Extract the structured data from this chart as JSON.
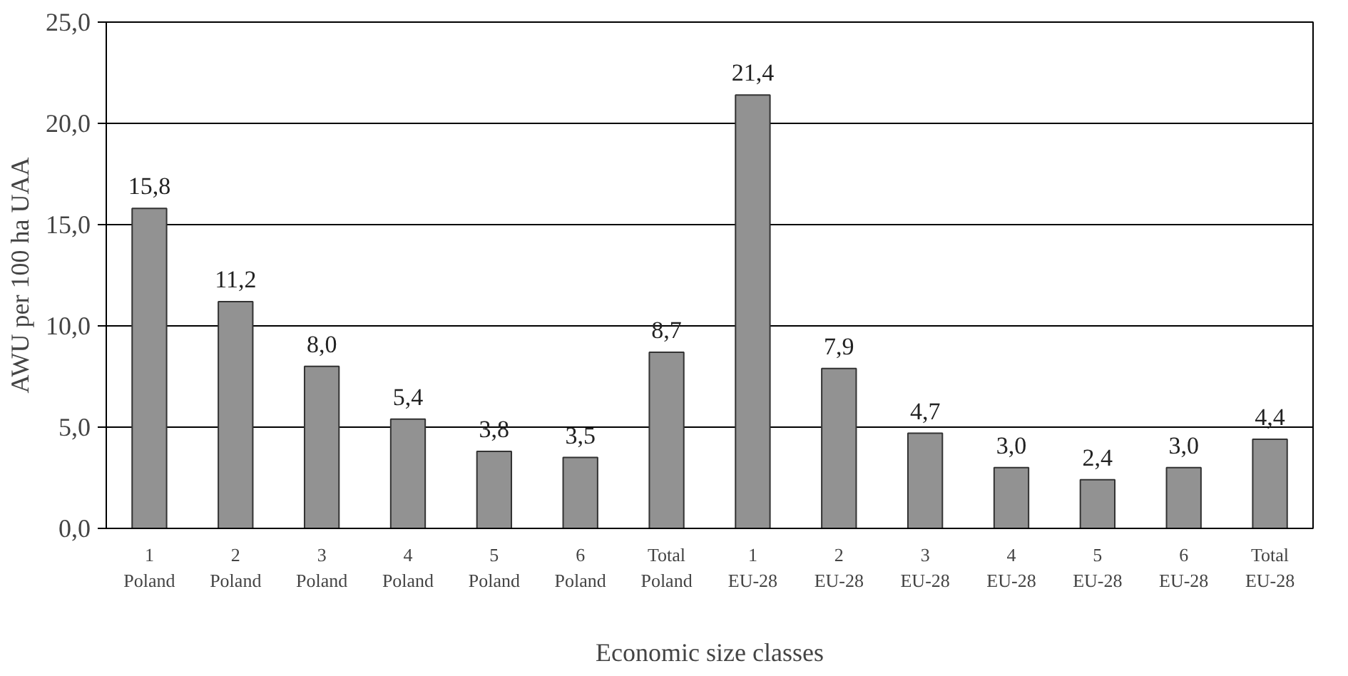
{
  "chart_data": {
    "type": "bar",
    "xlabel": "Economic size classes",
    "ylabel": "AWU per 100 ha UAA",
    "categories": [
      "1\nPoland",
      "2\nPoland",
      "3\nPoland",
      "4\nPoland",
      "5\nPoland",
      "6\nPoland",
      "Total\nPoland",
      "1\nEU-28",
      "2\nEU-28",
      "3\nEU-28",
      "4\nEU-28",
      "5\nEU-28",
      "6\nEU-28",
      "Total\nEU-28"
    ],
    "values": [
      15.8,
      11.2,
      8.0,
      5.4,
      3.8,
      3.5,
      8.7,
      21.4,
      7.9,
      4.7,
      3.0,
      2.4,
      3.0,
      4.4
    ],
    "value_labels": [
      "15,8",
      "11,2",
      "8,0",
      "5,4",
      "3,8",
      "3,5",
      "8,7",
      "21,4",
      "7,9",
      "4,7",
      "3,0",
      "2,4",
      "3,0",
      "4,4"
    ],
    "color": "#929292",
    "ylim": [
      0,
      25
    ],
    "yticks": [
      {
        "value": 0,
        "label": "0,0"
      },
      {
        "value": 5,
        "label": "5,0"
      },
      {
        "value": 10,
        "label": "10,0"
      },
      {
        "value": 15,
        "label": "15,0"
      },
      {
        "value": 20,
        "label": "20,0"
      },
      {
        "value": 25,
        "label": "25,0"
      }
    ],
    "grid": "y"
  }
}
